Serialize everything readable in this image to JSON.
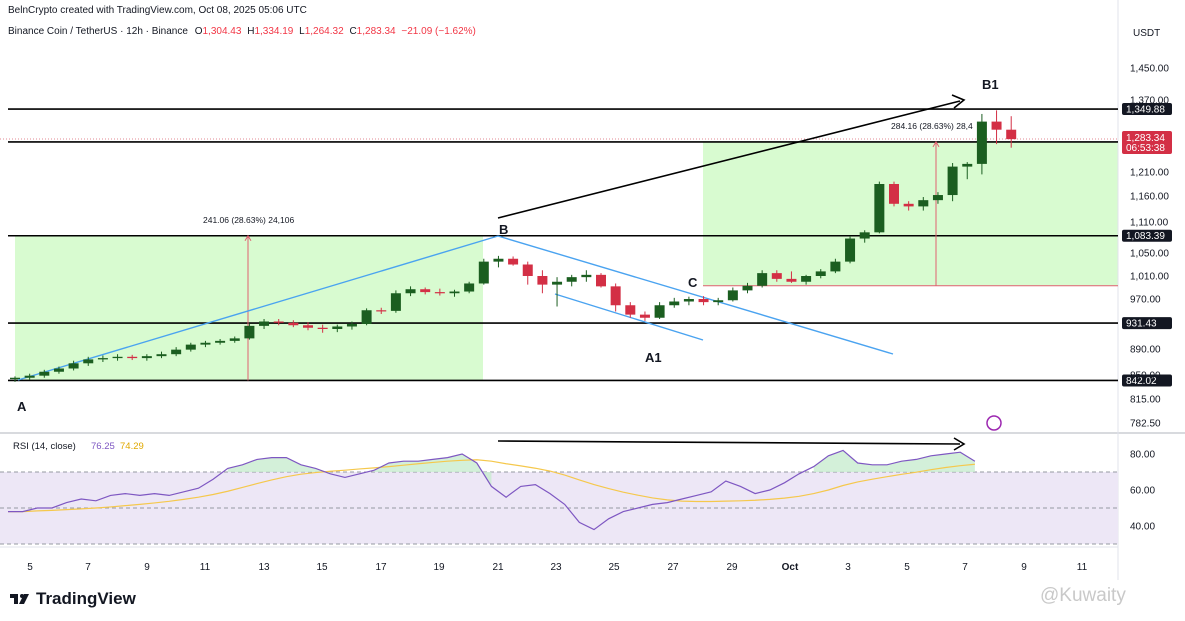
{
  "header": {
    "credit": "BelnCrypto created with TradingView.com, Oct 08, 2025 05:06 UTC",
    "symbol": "Binance Coin / TetherUS · 12h · Binance",
    "o_label": "O",
    "o": "1,304.43",
    "h_label": "H",
    "h": "1,334.19",
    "l_label": "L",
    "l": "1,264.32",
    "c_label": "C",
    "c": "1,283.34",
    "change": "−21.09 (−1.62%)"
  },
  "colors": {
    "up": "#1b5e20",
    "down": "#d32f45",
    "zone": "#d8fbd0",
    "rsi_line": "#7e57c2",
    "rsi_ma": "#f5c84c",
    "rsi_band": "#ede7f6",
    "channel": "#4aa3f0",
    "arrow": "#e06070"
  },
  "footer": {
    "brand": "TradingView",
    "watermark": "@Kuwaity"
  },
  "chart_data": [
    {
      "type": "candlestick",
      "title": "Binance Coin / TetherUS · 12h · Binance",
      "currency": "USDT",
      "y_ticks": [
        1450,
        1370,
        1210,
        1160,
        1110,
        1050,
        1010,
        970,
        890,
        850,
        815,
        782.5
      ],
      "y_tick_labels": [
        "1,450.00",
        "1,370.00",
        "1,210.00",
        "1,160.00",
        "1,110.00",
        "1,050.00",
        "1,010.00",
        "970.00",
        "890.00",
        "850.00",
        "815.00",
        "782.50"
      ],
      "x_tick_labels": [
        "5",
        "7",
        "9",
        "11",
        "13",
        "15",
        "17",
        "19",
        "21",
        "23",
        "25",
        "27",
        "29",
        "Oct",
        "3",
        "5",
        "7",
        "9",
        "11"
      ],
      "ohlc": [
        [
          844,
          848,
          840,
          846
        ],
        [
          846,
          852,
          843,
          849
        ],
        [
          849,
          858,
          846,
          855
        ],
        [
          855,
          863,
          852,
          860
        ],
        [
          860,
          872,
          857,
          868
        ],
        [
          868,
          878,
          864,
          874
        ],
        [
          874,
          880,
          870,
          876
        ],
        [
          876,
          882,
          872,
          878
        ],
        [
          878,
          881,
          873,
          876
        ],
        [
          876,
          882,
          872,
          879
        ],
        [
          879,
          886,
          876,
          882
        ],
        [
          882,
          893,
          879,
          889
        ],
        [
          889,
          900,
          886,
          897
        ],
        [
          897,
          903,
          893,
          900
        ],
        [
          900,
          906,
          897,
          903
        ],
        [
          903,
          910,
          900,
          907
        ],
        [
          907,
          930,
          905,
          927
        ],
        [
          927,
          938,
          922,
          934
        ],
        [
          934,
          938,
          928,
          932
        ],
        [
          932,
          936,
          925,
          928
        ],
        [
          928,
          933,
          920,
          924
        ],
        [
          924,
          929,
          916,
          922
        ],
        [
          922,
          929,
          917,
          926
        ],
        [
          926,
          934,
          921,
          930
        ],
        [
          930,
          955,
          928,
          952
        ],
        [
          952,
          956,
          946,
          951
        ],
        [
          951,
          985,
          948,
          980
        ],
        [
          980,
          992,
          975,
          987
        ],
        [
          987,
          990,
          978,
          982
        ],
        [
          982,
          988,
          976,
          980
        ],
        [
          980,
          986,
          974,
          983
        ],
        [
          983,
          1000,
          980,
          997
        ],
        [
          997,
          1040,
          995,
          1035
        ],
        [
          1035,
          1045,
          1025,
          1040
        ],
        [
          1040,
          1044,
          1028,
          1030
        ],
        [
          1030,
          1035,
          995,
          1010
        ],
        [
          1010,
          1020,
          980,
          995
        ],
        [
          995,
          1008,
          958,
          1000
        ],
        [
          1000,
          1012,
          992,
          1008
        ],
        [
          1008,
          1020,
          1000,
          1012
        ],
        [
          1012,
          1015,
          990,
          992
        ],
        [
          992,
          997,
          950,
          960
        ],
        [
          960,
          965,
          940,
          945
        ],
        [
          945,
          950,
          935,
          940
        ],
        [
          940,
          965,
          938,
          960
        ],
        [
          960,
          972,
          956,
          966
        ],
        [
          966,
          974,
          960,
          970
        ],
        [
          970,
          975,
          960,
          965
        ],
        [
          965,
          972,
          960,
          968
        ],
        [
          968,
          990,
          966,
          985
        ],
        [
          985,
          998,
          980,
          993
        ],
        [
          993,
          1020,
          990,
          1015
        ],
        [
          1015,
          1020,
          1000,
          1005
        ],
        [
          1005,
          1018,
          998,
          1000
        ],
        [
          1000,
          1012,
          995,
          1010
        ],
        [
          1010,
          1022,
          1006,
          1018
        ],
        [
          1018,
          1040,
          1015,
          1035
        ],
        [
          1035,
          1083,
          1032,
          1078
        ],
        [
          1078,
          1094,
          1070,
          1090
        ],
        [
          1090,
          1190,
          1088,
          1185
        ],
        [
          1185,
          1190,
          1140,
          1145
        ],
        [
          1145,
          1150,
          1132,
          1140
        ],
        [
          1140,
          1158,
          1132,
          1152
        ],
        [
          1152,
          1168,
          1145,
          1162
        ],
        [
          1162,
          1230,
          1150,
          1222
        ],
        [
          1222,
          1232,
          1195,
          1228
        ],
        [
          1228,
          1339,
          1205,
          1322
        ],
        [
          1322,
          1347,
          1272,
          1304
        ],
        [
          1304,
          1334,
          1264,
          1283
        ]
      ],
      "horizontal_levels": [
        {
          "value": 1349.88,
          "label": "1,349.88"
        },
        {
          "value": 1276.79,
          "label": "1,276.79"
        },
        {
          "value": 1083.39,
          "label": "1,083.39"
        },
        {
          "value": 931.43,
          "label": "931.43"
        },
        {
          "value": 842.02,
          "label": "842.02"
        }
      ],
      "last_price": {
        "value": 1283.34,
        "label": "1,283.34",
        "countdown": "06:53:38"
      },
      "measurements": [
        {
          "text": "241.06 (28.63%) 24,106",
          "from": 842.02,
          "to": 1083.39
        },
        {
          "text": "284.16 (28.63%) 28,4",
          "from": 993,
          "to": 1277
        }
      ],
      "annotations": [
        "A",
        "B",
        "A1",
        "C",
        "B1"
      ]
    },
    {
      "type": "line",
      "title": "RSI (14, close)",
      "rsi_value": "76.25",
      "rsi_ma_value": "74.29",
      "y_ticks": [
        "80.00",
        "60.00",
        "40.00"
      ],
      "levels": [
        70,
        50,
        30
      ],
      "series": [
        {
          "values": [
            48,
            48,
            50,
            50,
            53,
            55,
            54,
            57,
            58,
            57,
            58,
            57,
            59,
            61,
            66,
            72,
            74,
            77,
            78,
            78,
            74,
            72,
            69,
            67,
            69,
            71,
            75,
            76,
            76,
            77,
            78,
            80,
            75,
            62,
            56,
            62,
            63,
            58,
            52,
            42,
            38,
            44,
            48,
            50,
            52,
            53,
            55,
            57,
            59,
            65,
            62,
            58,
            60,
            64,
            69,
            73,
            79,
            82,
            75,
            74,
            74,
            76,
            77,
            79,
            80,
            81,
            76
          ]
        },
        {
          "values": [
            48,
            48,
            48.4,
            48.7,
            49.1,
            49.5,
            50,
            50.6,
            51.3,
            52,
            52.8,
            53.7,
            54.8,
            56,
            57.5,
            59.3,
            61.4,
            63.6,
            65.6,
            67.4,
            68.8,
            69.7,
            70.4,
            71,
            71.7,
            72.3,
            73,
            73.8,
            74.6,
            75.3,
            76,
            76.5,
            76.8,
            76,
            74.6,
            73.4,
            72.1,
            70.5,
            68.3,
            65.6,
            63,
            60.8,
            58.8,
            57.1,
            55.6,
            54.5,
            53.8,
            53.6,
            53.6,
            53.8,
            54,
            54.3,
            54.8,
            55.5,
            56.5,
            58,
            60,
            62.5,
            64.5,
            66,
            67.4,
            68.7,
            69.9,
            71.3,
            72.5,
            73.5,
            74.3
          ]
        }
      ]
    }
  ]
}
